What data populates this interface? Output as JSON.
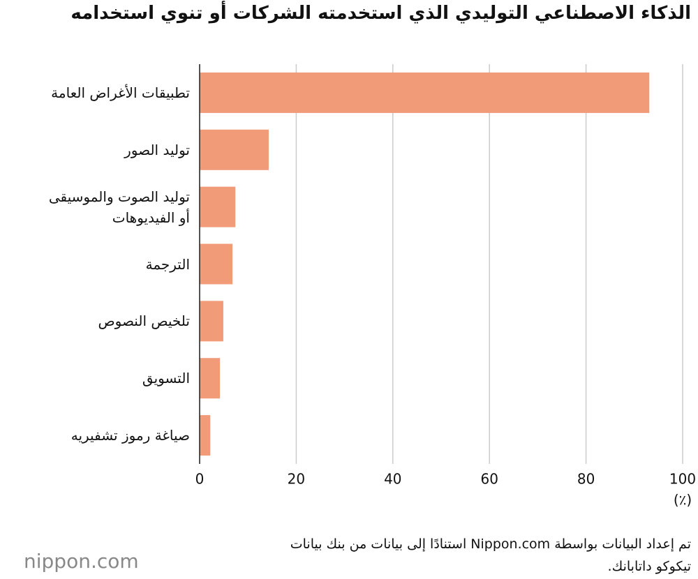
{
  "chart_data": {
    "type": "hbar",
    "title": "الذكاء الاصطناعي التوليدي الذي استخدمته الشركات أو تنوي استخدامه",
    "categories": [
      "تطبيقات الأغراض العامة",
      "توليد الصور",
      "توليد الصوت والموسيقى\nأو الفيديوهات",
      "الترجمة",
      "تلخيص النصوص",
      "التسويق",
      "صياغة رموز تشفيريه"
    ],
    "values": [
      93.1,
      14.3,
      7.4,
      6.8,
      4.9,
      4.2,
      2.2
    ],
    "color": "#f29b79",
    "xlim": [
      0,
      100
    ],
    "xticks": [
      0,
      20,
      40,
      60,
      80,
      100
    ],
    "x_label": "(٪)",
    "grid": true,
    "source": "تم إعداد البيانات بواسطة Nippon.com استنادًا إلى بيانات من بنك بيانات\nتيكوكو داتابانك.",
    "logo": "nippon.com"
  }
}
